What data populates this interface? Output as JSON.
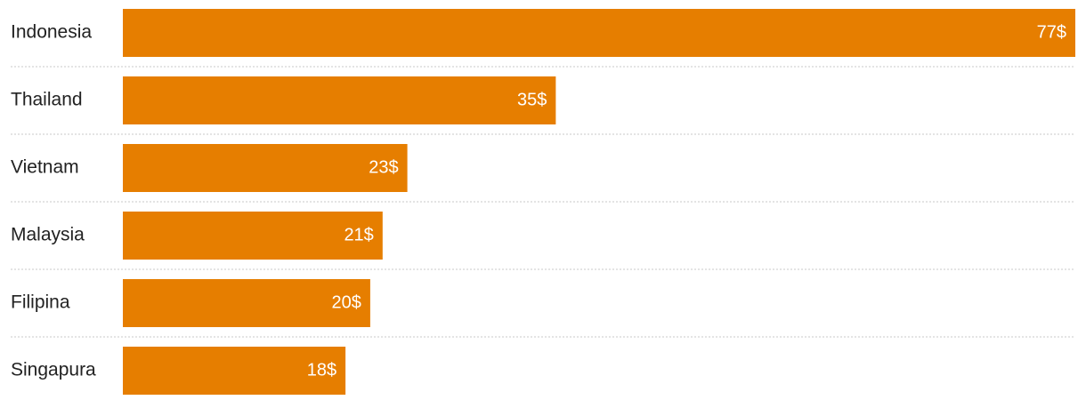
{
  "chart_data": {
    "type": "bar",
    "orientation": "horizontal",
    "categories": [
      "Indonesia",
      "Thailand",
      "Vietnam",
      "Malaysia",
      "Filipina",
      "Singapura"
    ],
    "values": [
      77,
      35,
      23,
      21,
      20,
      18
    ],
    "value_labels": [
      "77$",
      "35$",
      "23$",
      "21$",
      "20$",
      "18$"
    ],
    "color": "#e67e00"
  }
}
